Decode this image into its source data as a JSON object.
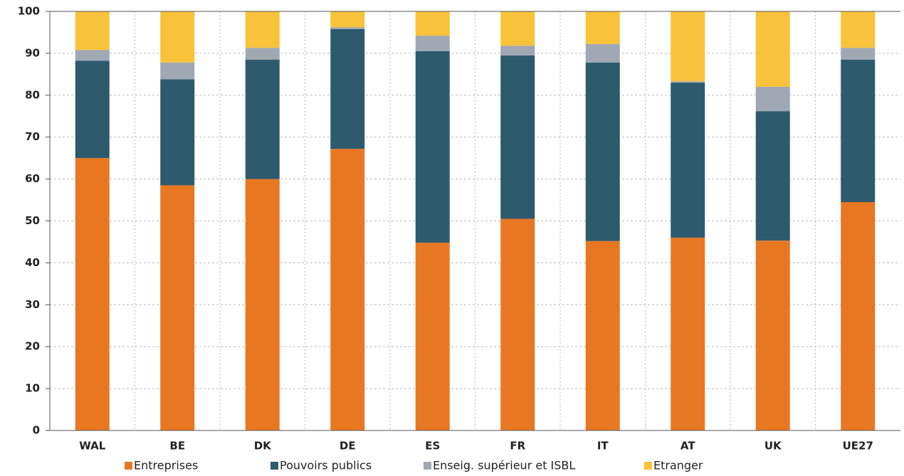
{
  "chart_data": {
    "type": "stacked_bar",
    "categories": [
      "WAL",
      "BE",
      "DK",
      "DE",
      "ES",
      "FR",
      "IT",
      "AT",
      "UK",
      "UE27"
    ],
    "series": [
      {
        "name": "Entreprises",
        "color": "#e87722",
        "values": [
          65,
          58.5,
          60,
          67.2,
          44.8,
          50.5,
          45.2,
          46,
          45.3,
          54.5
        ]
      },
      {
        "name": "Pouvoirs publics",
        "color": "#2e5a6e",
        "values": [
          23.2,
          25.3,
          28.5,
          28.6,
          45.7,
          39.0,
          42.6,
          37,
          30.9,
          34
        ]
      },
      {
        "name": "Enseig. supérieur et ISBL",
        "color": "#a0a8b4",
        "values": [
          2.6,
          4.0,
          2.8,
          0.4,
          3.7,
          2.3,
          4.4,
          0.3,
          5.8,
          2.8
        ]
      },
      {
        "name": "Etranger",
        "color": "#f8c23a",
        "values": [
          9.2,
          12.2,
          8.7,
          3.8,
          5.8,
          8.2,
          7.8,
          16.7,
          18,
          8.7
        ]
      }
    ],
    "ylim": [
      0,
      100
    ],
    "yticks": [
      0,
      10,
      20,
      30,
      40,
      50,
      60,
      70,
      80,
      90,
      100
    ],
    "grid": true
  }
}
